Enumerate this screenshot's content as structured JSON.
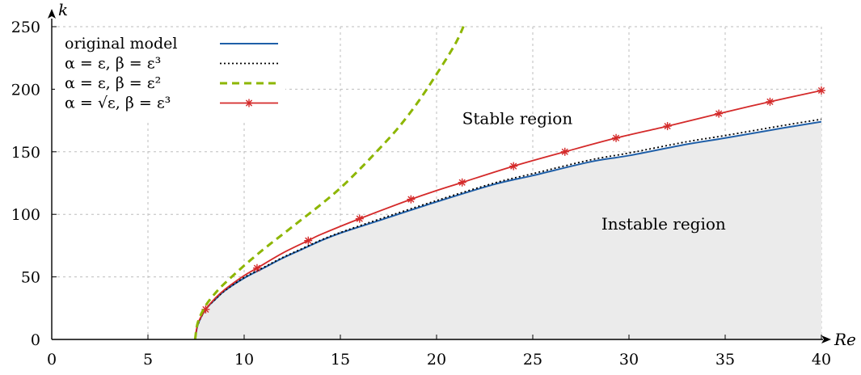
{
  "chart_data": {
    "type": "line",
    "xlabel": "Re",
    "ylabel": "k",
    "xlim": [
      0,
      40
    ],
    "ylim": [
      0,
      250
    ],
    "xticks": [
      0,
      5,
      10,
      15,
      20,
      25,
      30,
      35,
      40
    ],
    "yticks": [
      0,
      50,
      100,
      150,
      200,
      250
    ],
    "grid": true,
    "legend_position": "top-left",
    "annotations": [
      {
        "text": "Stable region",
        "x": 24.2,
        "y": 172
      },
      {
        "text": "Instable region",
        "x": 31.8,
        "y": 88
      }
    ],
    "shaded_region": {
      "series_index": 0,
      "color": "#ebebeb"
    },
    "series": [
      {
        "name": "original model",
        "legend_label": "original model",
        "color": "#1f5fa8",
        "dash": "solid",
        "width": 2,
        "x": [
          7.45,
          7.6,
          8,
          8.5,
          9,
          10,
          11,
          12,
          13,
          14,
          15,
          17,
          20,
          23,
          25,
          28,
          30,
          33,
          35,
          38,
          40
        ],
        "y": [
          0,
          12,
          24,
          32,
          39,
          49,
          57,
          65,
          72,
          79,
          85,
          95,
          110,
          124,
          131,
          142,
          147,
          156,
          161,
          169,
          174
        ]
      },
      {
        "name": "alpha=eps, beta=eps^3",
        "legend_label": "α = ε, β = ε³",
        "color": "#000000",
        "dash": "dotted",
        "width": 1.8,
        "x": [
          7.45,
          7.6,
          8,
          8.5,
          9,
          10,
          11,
          12,
          13,
          14,
          15,
          17,
          20,
          23,
          25,
          28,
          30,
          33,
          35,
          38,
          40
        ],
        "y": [
          0,
          12,
          24,
          32,
          39,
          49.5,
          57.5,
          65.5,
          72.5,
          79.5,
          85.5,
          96,
          111,
          125,
          132.5,
          143.5,
          149,
          158,
          163,
          171,
          176
        ]
      },
      {
        "name": "alpha=eps, beta=eps^2",
        "legend_label": "α = ε, β = ε²",
        "color": "#8db600",
        "dash": "dashed",
        "width": 3,
        "x": [
          7.45,
          7.6,
          8,
          8.5,
          9,
          10,
          11,
          12,
          13,
          14,
          15,
          16,
          17,
          18,
          19,
          20,
          21,
          21.5
        ],
        "y": [
          0,
          14,
          27,
          37,
          45,
          59,
          72,
          84,
          96,
          108,
          121,
          136,
          152,
          169,
          189,
          212,
          237,
          254
        ]
      },
      {
        "name": "alpha=sqrt(eps), beta=eps^3",
        "legend_label": "α = √ε, β = ε³",
        "color": "#d42a2a",
        "dash": "solid",
        "width": 1.8,
        "marker": "asterisk",
        "x": [
          7.45,
          7.6,
          8,
          8.5,
          9,
          10,
          10.67,
          12,
          13.33,
          14,
          16,
          18.67,
          20,
          21.33,
          24,
          26.67,
          29.33,
          32,
          34.67,
          37.33,
          40
        ],
        "y": [
          0,
          13,
          24,
          33,
          40,
          51,
          57,
          69,
          79,
          84,
          96.5,
          112,
          119,
          125.5,
          138.5,
          150,
          161,
          170.5,
          180.5,
          190,
          199
        ]
      }
    ]
  }
}
